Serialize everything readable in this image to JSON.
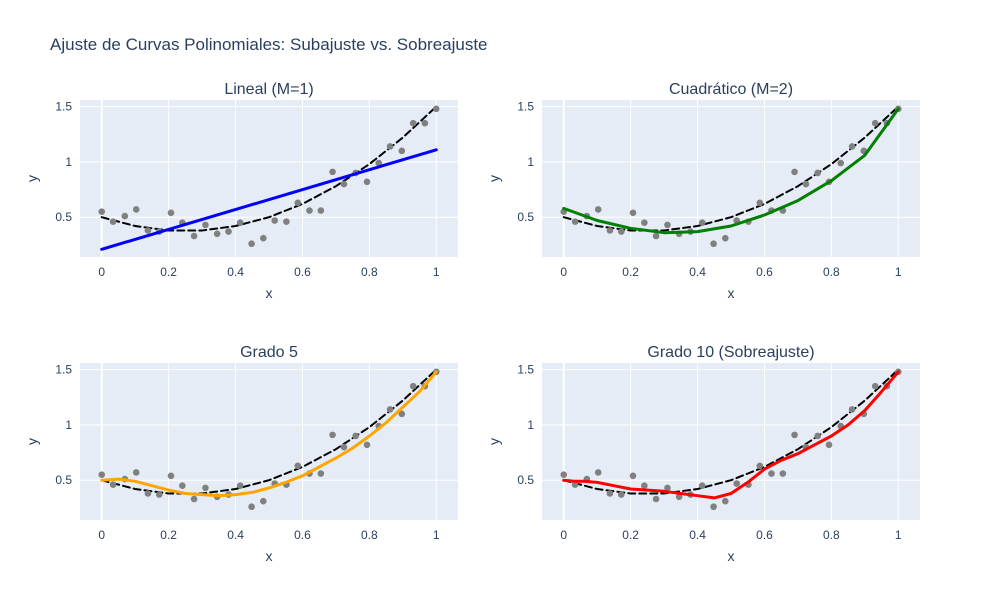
{
  "figure": {
    "title": "Ajuste de Curvas Polinomiales: Subajuste vs. Sobreajuste",
    "colors": {
      "background": "#ffffff",
      "plot_background": "#e5ecf6",
      "grid": "#ffffff",
      "text": "#2a3f5f",
      "data_points": "#808080",
      "true_curve": "#000000"
    }
  },
  "chart_data": [
    {
      "type": "scatter",
      "title": "Lineal (M=1)",
      "xlabel": "x",
      "ylabel": "y",
      "xlim": [
        -0.065,
        1.065
      ],
      "ylim": [
        0.14,
        1.56
      ],
      "xticks": [
        0,
        0.2,
        0.4,
        0.6,
        0.8,
        1
      ],
      "xtick_labels": [
        "0",
        "0.2",
        "0.4",
        "0.6",
        "0.8",
        "1"
      ],
      "yticks": [
        0.5,
        1,
        1.5
      ],
      "ytick_labels": [
        "0.5",
        "1",
        "1.5"
      ],
      "grid": true,
      "series": [
        {
          "kind": "markers",
          "color": "#808080",
          "x": [
            0,
            0.034,
            0.069,
            0.103,
            0.138,
            0.172,
            0.207,
            0.241,
            0.276,
            0.31,
            0.345,
            0.379,
            0.414,
            0.448,
            0.483,
            0.517,
            0.552,
            0.586,
            0.621,
            0.655,
            0.69,
            0.724,
            0.759,
            0.793,
            0.828,
            0.862,
            0.897,
            0.931,
            0.966,
            1
          ],
          "y": [
            0.55,
            0.46,
            0.51,
            0.57,
            0.38,
            0.37,
            0.54,
            0.45,
            0.33,
            0.43,
            0.35,
            0.37,
            0.45,
            0.26,
            0.31,
            0.47,
            0.46,
            0.63,
            0.56,
            0.56,
            0.91,
            0.8,
            0.9,
            0.82,
            0.99,
            1.14,
            1.1,
            1.35,
            1.35,
            1.48
          ]
        },
        {
          "kind": "dashed-line",
          "color": "#000000",
          "x": [
            0,
            0.1,
            0.2,
            0.3,
            0.4,
            0.5,
            0.6,
            0.7,
            0.8,
            0.9,
            1
          ],
          "y": [
            0.5,
            0.42,
            0.38,
            0.38,
            0.42,
            0.5,
            0.62,
            0.78,
            0.98,
            1.22,
            1.5
          ]
        },
        {
          "kind": "fit-line",
          "color": "#0000ff",
          "x": [
            0,
            1
          ],
          "y": [
            0.21,
            1.11
          ]
        }
      ]
    },
    {
      "type": "scatter",
      "title": "Cuadrático (M=2)",
      "xlabel": "x",
      "ylabel": "y",
      "xlim": [
        -0.065,
        1.065
      ],
      "ylim": [
        0.14,
        1.56
      ],
      "xticks": [
        0,
        0.2,
        0.4,
        0.6,
        0.8,
        1
      ],
      "xtick_labels": [
        "0",
        "0.2",
        "0.4",
        "0.6",
        "0.8",
        "1"
      ],
      "yticks": [
        0.5,
        1,
        1.5
      ],
      "ytick_labels": [
        "0.5",
        "1",
        "1.5"
      ],
      "grid": true,
      "series": [
        {
          "kind": "markers",
          "color": "#808080",
          "x": [
            0,
            0.034,
            0.069,
            0.103,
            0.138,
            0.172,
            0.207,
            0.241,
            0.276,
            0.31,
            0.345,
            0.379,
            0.414,
            0.448,
            0.483,
            0.517,
            0.552,
            0.586,
            0.621,
            0.655,
            0.69,
            0.724,
            0.759,
            0.793,
            0.828,
            0.862,
            0.897,
            0.931,
            0.966,
            1
          ],
          "y": [
            0.55,
            0.46,
            0.51,
            0.57,
            0.38,
            0.37,
            0.54,
            0.45,
            0.33,
            0.43,
            0.35,
            0.37,
            0.45,
            0.26,
            0.31,
            0.47,
            0.46,
            0.63,
            0.56,
            0.56,
            0.91,
            0.8,
            0.9,
            0.82,
            0.99,
            1.14,
            1.1,
            1.35,
            1.35,
            1.48
          ]
        },
        {
          "kind": "dashed-line",
          "color": "#000000",
          "x": [
            0,
            0.1,
            0.2,
            0.3,
            0.4,
            0.5,
            0.6,
            0.7,
            0.8,
            0.9,
            1
          ],
          "y": [
            0.5,
            0.42,
            0.38,
            0.38,
            0.42,
            0.5,
            0.62,
            0.78,
            0.98,
            1.22,
            1.5
          ]
        },
        {
          "kind": "fit-line",
          "color": "#008000",
          "x": [
            0,
            0.1,
            0.2,
            0.3,
            0.4,
            0.5,
            0.6,
            0.7,
            0.8,
            0.9,
            1
          ],
          "y": [
            0.58,
            0.47,
            0.4,
            0.36,
            0.37,
            0.42,
            0.52,
            0.65,
            0.83,
            1.06,
            1.48
          ]
        }
      ]
    },
    {
      "type": "scatter",
      "title": "Grado 5",
      "xlabel": "x",
      "ylabel": "y",
      "xlim": [
        -0.065,
        1.065
      ],
      "ylim": [
        0.14,
        1.56
      ],
      "xticks": [
        0,
        0.2,
        0.4,
        0.6,
        0.8,
        1
      ],
      "xtick_labels": [
        "0",
        "0.2",
        "0.4",
        "0.6",
        "0.8",
        "1"
      ],
      "yticks": [
        0.5,
        1,
        1.5
      ],
      "ytick_labels": [
        "0.5",
        "1",
        "1.5"
      ],
      "grid": true,
      "series": [
        {
          "kind": "markers",
          "color": "#808080",
          "x": [
            0,
            0.034,
            0.069,
            0.103,
            0.138,
            0.172,
            0.207,
            0.241,
            0.276,
            0.31,
            0.345,
            0.379,
            0.414,
            0.448,
            0.483,
            0.517,
            0.552,
            0.586,
            0.621,
            0.655,
            0.69,
            0.724,
            0.759,
            0.793,
            0.828,
            0.862,
            0.897,
            0.931,
            0.966,
            1
          ],
          "y": [
            0.55,
            0.46,
            0.51,
            0.57,
            0.38,
            0.37,
            0.54,
            0.45,
            0.33,
            0.43,
            0.35,
            0.37,
            0.45,
            0.26,
            0.31,
            0.47,
            0.46,
            0.63,
            0.56,
            0.56,
            0.91,
            0.8,
            0.9,
            0.82,
            0.99,
            1.14,
            1.1,
            1.35,
            1.35,
            1.48
          ]
        },
        {
          "kind": "dashed-line",
          "color": "#000000",
          "x": [
            0,
            0.1,
            0.2,
            0.3,
            0.4,
            0.5,
            0.6,
            0.7,
            0.8,
            0.9,
            1
          ],
          "y": [
            0.5,
            0.42,
            0.38,
            0.38,
            0.42,
            0.5,
            0.62,
            0.78,
            0.98,
            1.22,
            1.5
          ]
        },
        {
          "kind": "fit-line",
          "color": "#ffa500",
          "x": [
            0,
            0.05,
            0.1,
            0.15,
            0.2,
            0.25,
            0.3,
            0.35,
            0.4,
            0.45,
            0.5,
            0.55,
            0.6,
            0.65,
            0.7,
            0.75,
            0.8,
            0.85,
            0.9,
            0.95,
            1
          ],
          "y": [
            0.5,
            0.51,
            0.49,
            0.45,
            0.41,
            0.38,
            0.37,
            0.36,
            0.37,
            0.39,
            0.43,
            0.48,
            0.54,
            0.62,
            0.7,
            0.79,
            0.9,
            1.02,
            1.16,
            1.3,
            1.48
          ]
        }
      ]
    },
    {
      "type": "scatter",
      "title": "Grado 10 (Sobreajuste)",
      "xlabel": "x",
      "ylabel": "y",
      "xlim": [
        -0.065,
        1.065
      ],
      "ylim": [
        0.14,
        1.56
      ],
      "xticks": [
        0,
        0.2,
        0.4,
        0.6,
        0.8,
        1
      ],
      "xtick_labels": [
        "0",
        "0.2",
        "0.4",
        "0.6",
        "0.8",
        "1"
      ],
      "yticks": [
        0.5,
        1,
        1.5
      ],
      "ytick_labels": [
        "0.5",
        "1",
        "1.5"
      ],
      "grid": true,
      "series": [
        {
          "kind": "markers",
          "color": "#808080",
          "x": [
            0,
            0.034,
            0.069,
            0.103,
            0.138,
            0.172,
            0.207,
            0.241,
            0.276,
            0.31,
            0.345,
            0.379,
            0.414,
            0.448,
            0.483,
            0.517,
            0.552,
            0.586,
            0.621,
            0.655,
            0.69,
            0.724,
            0.759,
            0.793,
            0.828,
            0.862,
            0.897,
            0.931,
            0.966,
            1
          ],
          "y": [
            0.55,
            0.46,
            0.51,
            0.57,
            0.38,
            0.37,
            0.54,
            0.45,
            0.33,
            0.43,
            0.35,
            0.37,
            0.45,
            0.26,
            0.31,
            0.47,
            0.46,
            0.63,
            0.56,
            0.56,
            0.91,
            0.8,
            0.9,
            0.82,
            0.99,
            1.14,
            1.1,
            1.35,
            1.35,
            1.48
          ]
        },
        {
          "kind": "dashed-line",
          "color": "#000000",
          "x": [
            0,
            0.1,
            0.2,
            0.3,
            0.4,
            0.5,
            0.6,
            0.7,
            0.8,
            0.9,
            1
          ],
          "y": [
            0.5,
            0.42,
            0.38,
            0.38,
            0.42,
            0.5,
            0.62,
            0.78,
            0.98,
            1.22,
            1.5
          ]
        },
        {
          "kind": "fit-line",
          "color": "#ff0000",
          "x": [
            0,
            0.03,
            0.06,
            0.1,
            0.15,
            0.2,
            0.25,
            0.3,
            0.35,
            0.4,
            0.45,
            0.5,
            0.55,
            0.6,
            0.65,
            0.7,
            0.75,
            0.8,
            0.85,
            0.9,
            0.95,
            1
          ],
          "y": [
            0.5,
            0.49,
            0.49,
            0.48,
            0.45,
            0.42,
            0.41,
            0.4,
            0.38,
            0.36,
            0.34,
            0.38,
            0.48,
            0.6,
            0.68,
            0.74,
            0.82,
            0.9,
            1.0,
            1.13,
            1.3,
            1.48
          ]
        }
      ]
    }
  ]
}
